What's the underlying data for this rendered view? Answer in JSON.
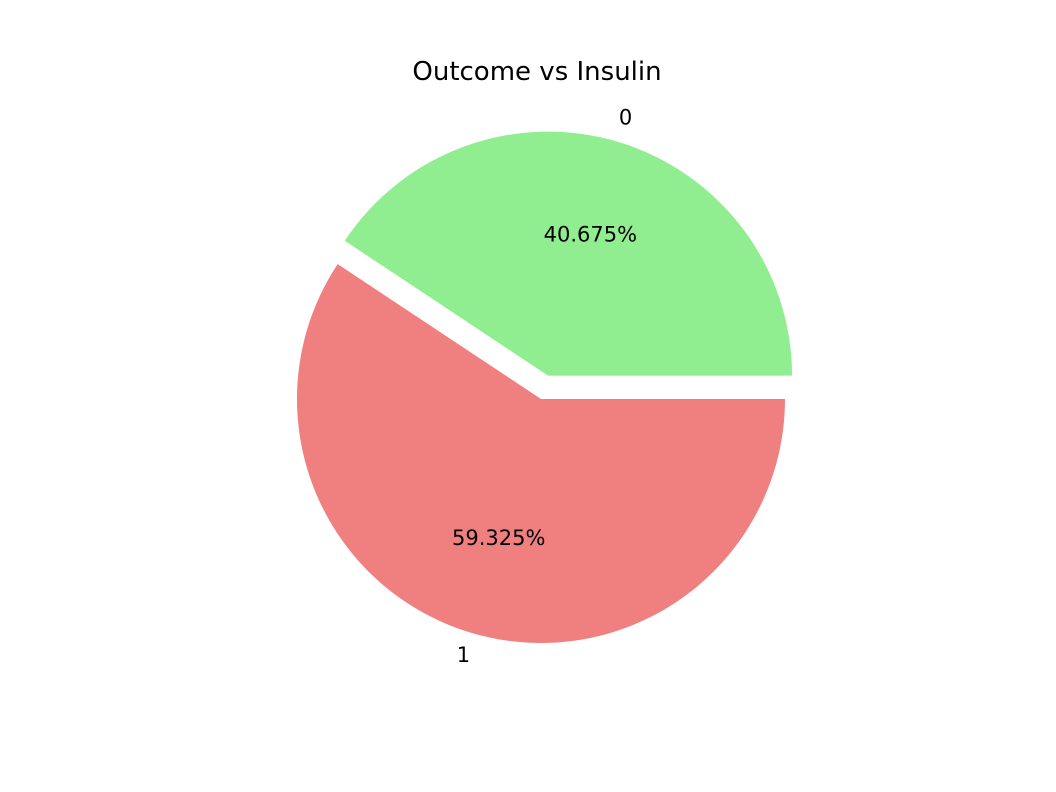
{
  "chart_data": {
    "type": "pie",
    "title": "Outcome vs Insulin",
    "labels": [
      "0",
      "1"
    ],
    "values": [
      40.675,
      59.325
    ],
    "percent_labels": [
      "40.675%",
      "59.325%"
    ],
    "colors": [
      "#90ee90",
      "#f08080"
    ],
    "explode": [
      0.1,
      0
    ],
    "start_angle_deg": 0,
    "direction": "counterclockwise"
  }
}
